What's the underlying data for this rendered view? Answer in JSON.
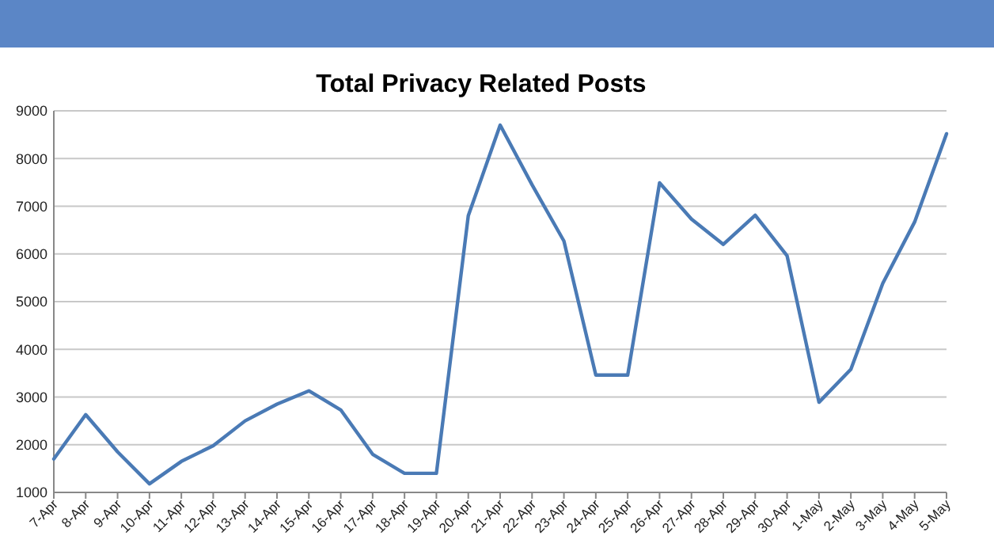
{
  "chart_data": {
    "type": "line",
    "title": "Total Privacy Related Posts",
    "categories": [
      "7-Apr",
      "8-Apr",
      "9-Apr",
      "10-Apr",
      "11-Apr",
      "12-Apr",
      "13-Apr",
      "14-Apr",
      "15-Apr",
      "16-Apr",
      "17-Apr",
      "18-Apr",
      "19-Apr",
      "20-Apr",
      "21-Apr",
      "22-Apr",
      "23-Apr",
      "24-Apr",
      "25-Apr",
      "26-Apr",
      "27-Apr",
      "28-Apr",
      "29-Apr",
      "30-Apr",
      "1-May",
      "2-May",
      "3-May",
      "4-May",
      "5-May"
    ],
    "series": [
      {
        "color": "#4a7ab5",
        "values": [
          1700,
          2630,
          1850,
          1180,
          1650,
          1980,
          2500,
          2850,
          3130,
          2730,
          1800,
          1400,
          1400,
          6800,
          8700,
          7450,
          6270,
          3460,
          3460,
          7490,
          6730,
          6200,
          6810,
          5960,
          2890,
          3580,
          5380,
          6670,
          8520
        ]
      }
    ],
    "ylim": [
      1000,
      9000
    ],
    "yticks": [
      1000,
      2000,
      3000,
      4000,
      5000,
      6000,
      7000,
      8000,
      9000
    ],
    "grid": "y",
    "marker": "none",
    "line_style": "solid"
  }
}
